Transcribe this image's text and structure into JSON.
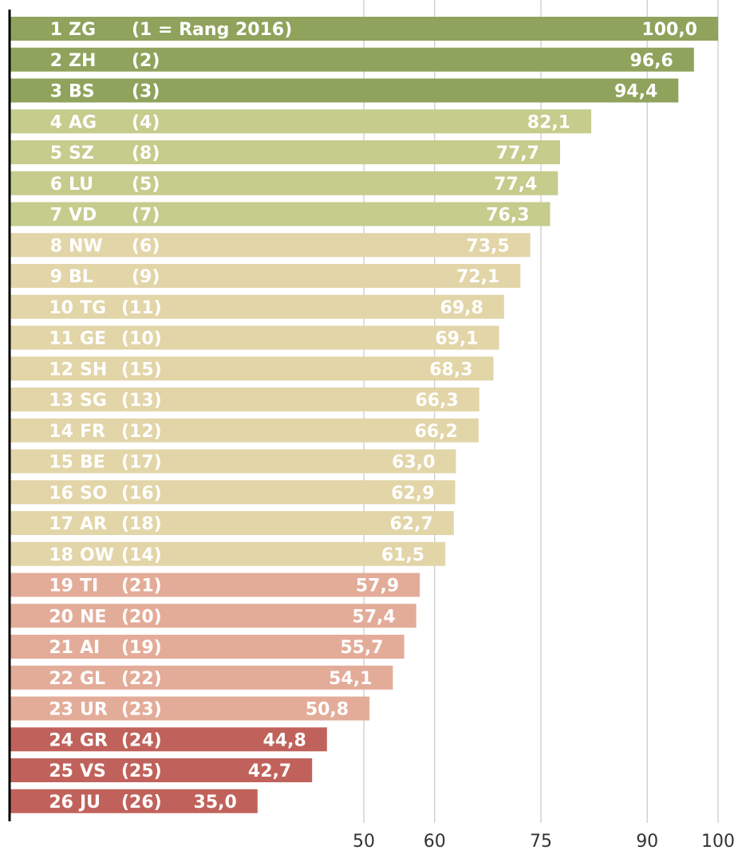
{
  "chart_data": {
    "type": "bar",
    "orientation": "horizontal",
    "title": "",
    "xlabel": "",
    "ylabel": "",
    "xlim": [
      0,
      100
    ],
    "xticks": [
      50,
      60,
      75,
      90,
      100
    ],
    "xtick_labels": [
      "50",
      "60",
      "75",
      "90",
      "100"
    ],
    "grid": true,
    "header_note": "(1 = Rang 2016)",
    "colors": {
      "tier1": "#8fa35c",
      "tier2": "#c5cc8c",
      "tier3": "#e2d5a8",
      "tier4": "#e3ac99",
      "tier5": "#c0625b"
    },
    "bars": [
      {
        "rank": "1",
        "canton": "ZG",
        "prev_rank": "(1",
        "value": 100.0,
        "value_label": "100,0",
        "tier": "tier1"
      },
      {
        "rank": "2",
        "canton": "ZH",
        "prev_rank": "(2)",
        "value": 96.6,
        "value_label": "96,6",
        "tier": "tier1"
      },
      {
        "rank": "3",
        "canton": "BS",
        "prev_rank": "(3)",
        "value": 94.4,
        "value_label": "94,4",
        "tier": "tier1"
      },
      {
        "rank": "4",
        "canton": "AG",
        "prev_rank": "(4)",
        "value": 82.1,
        "value_label": "82,1",
        "tier": "tier2"
      },
      {
        "rank": "5",
        "canton": "SZ",
        "prev_rank": "(8)",
        "value": 77.7,
        "value_label": "77,7",
        "tier": "tier2"
      },
      {
        "rank": "6",
        "canton": "LU",
        "prev_rank": "(5)",
        "value": 77.4,
        "value_label": "77,4",
        "tier": "tier2"
      },
      {
        "rank": "7",
        "canton": "VD",
        "prev_rank": "(7)",
        "value": 76.3,
        "value_label": "76,3",
        "tier": "tier2"
      },
      {
        "rank": "8",
        "canton": "NW",
        "prev_rank": "(6)",
        "value": 73.5,
        "value_label": "73,5",
        "tier": "tier3"
      },
      {
        "rank": "9",
        "canton": "BL",
        "prev_rank": "(9)",
        "value": 72.1,
        "value_label": "72,1",
        "tier": "tier3"
      },
      {
        "rank": "10",
        "canton": "TG",
        "prev_rank": "(11)",
        "value": 69.8,
        "value_label": "69,8",
        "tier": "tier3"
      },
      {
        "rank": "11",
        "canton": "GE",
        "prev_rank": "(10)",
        "value": 69.1,
        "value_label": "69,1",
        "tier": "tier3"
      },
      {
        "rank": "12",
        "canton": "SH",
        "prev_rank": "(15)",
        "value": 68.3,
        "value_label": "68,3",
        "tier": "tier3"
      },
      {
        "rank": "13",
        "canton": "SG",
        "prev_rank": "(13)",
        "value": 66.3,
        "value_label": "66,3",
        "tier": "tier3"
      },
      {
        "rank": "14",
        "canton": "FR",
        "prev_rank": "(12)",
        "value": 66.2,
        "value_label": "66,2",
        "tier": "tier3"
      },
      {
        "rank": "15",
        "canton": "BE",
        "prev_rank": "(17)",
        "value": 63.0,
        "value_label": "63,0",
        "tier": "tier3"
      },
      {
        "rank": "16",
        "canton": "SO",
        "prev_rank": "(16)",
        "value": 62.9,
        "value_label": "62,9",
        "tier": "tier3"
      },
      {
        "rank": "17",
        "canton": "AR",
        "prev_rank": "(18)",
        "value": 62.7,
        "value_label": "62,7",
        "tier": "tier3"
      },
      {
        "rank": "18",
        "canton": "OW",
        "prev_rank": "(14)",
        "value": 61.5,
        "value_label": "61,5",
        "tier": "tier3"
      },
      {
        "rank": "19",
        "canton": "TI",
        "prev_rank": "(21)",
        "value": 57.9,
        "value_label": "57,9",
        "tier": "tier4"
      },
      {
        "rank": "20",
        "canton": "NE",
        "prev_rank": "(20)",
        "value": 57.4,
        "value_label": "57,4",
        "tier": "tier4"
      },
      {
        "rank": "21",
        "canton": "AI",
        "prev_rank": "(19)",
        "value": 55.7,
        "value_label": "55,7",
        "tier": "tier4"
      },
      {
        "rank": "22",
        "canton": "GL",
        "prev_rank": "(22)",
        "value": 54.1,
        "value_label": "54,1",
        "tier": "tier4"
      },
      {
        "rank": "23",
        "canton": "UR",
        "prev_rank": "(23)",
        "value": 50.8,
        "value_label": "50,8",
        "tier": "tier4"
      },
      {
        "rank": "24",
        "canton": "GR",
        "prev_rank": "(24)",
        "value": 44.8,
        "value_label": "44,8",
        "tier": "tier5"
      },
      {
        "rank": "25",
        "canton": "VS",
        "prev_rank": "(25)",
        "value": 42.7,
        "value_label": "42,7",
        "tier": "tier5"
      },
      {
        "rank": "26",
        "canton": "JU",
        "prev_rank": "(26)",
        "value": 35.0,
        "value_label": "35,0",
        "tier": "tier5"
      }
    ]
  }
}
